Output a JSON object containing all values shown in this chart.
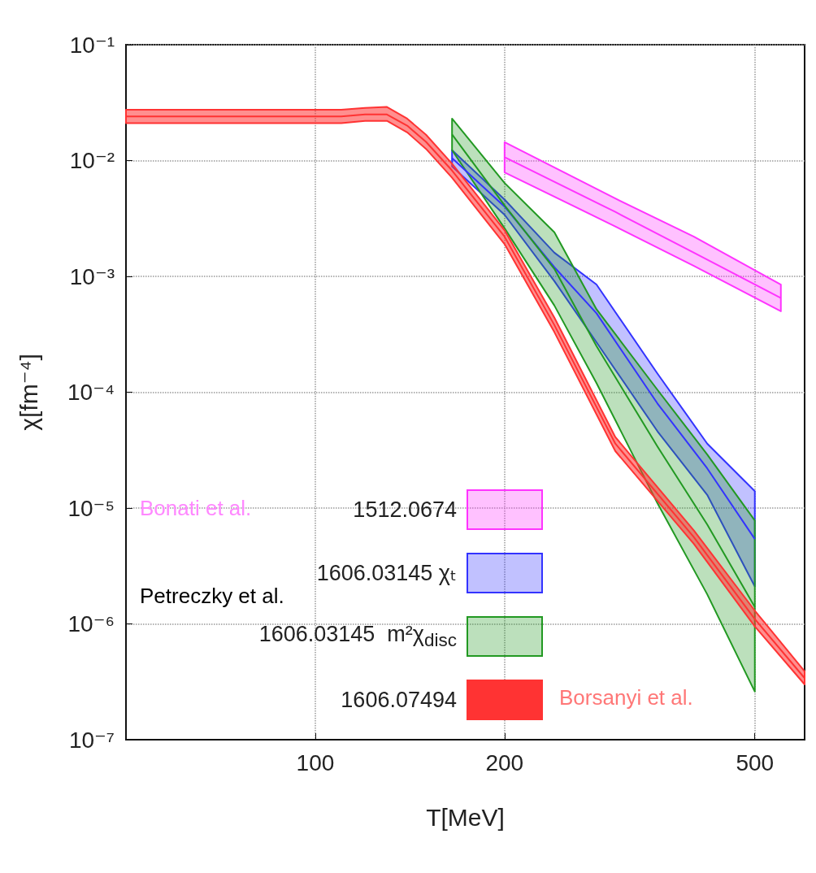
{
  "chart_data": {
    "type": "line",
    "xlabel": "T[MeV]",
    "ylabel": "χ[fm⁻⁴]",
    "log": "xy",
    "xlim": [
      50,
      600
    ],
    "xticks": [
      100,
      200,
      500
    ],
    "ylim": [
      1e-07,
      0.1
    ],
    "yticks": [
      {
        "value": 1e-07,
        "label": "10⁻⁷"
      },
      {
        "value": 1e-06,
        "label": "10⁻⁶"
      },
      {
        "value": 1e-05,
        "label": "10⁻⁵"
      },
      {
        "value": 0.0001,
        "label": "10⁻⁴"
      },
      {
        "value": 0.001,
        "label": "10⁻³"
      },
      {
        "value": 0.01,
        "label": "10⁻²"
      },
      {
        "value": 0.1,
        "label": "10⁻¹"
      }
    ],
    "grid": true,
    "legend": "bottom left",
    "annotations": [
      "Bonati et al.",
      "Petreczky et al.",
      "Borsanyi et al."
    ],
    "series": [
      {
        "name": "1512.0674",
        "color": "#ff33ff",
        "x": [
          200,
          300,
          400,
          550
        ],
        "values": [
          0.0107,
          0.0036,
          0.0016,
          0.00065
        ],
        "lower": [
          0.0079,
          0.0027,
          0.00123,
          0.0005
        ],
        "upper": [
          0.0144,
          0.0047,
          0.0022,
          0.00085
        ]
      },
      {
        "name": "1606.03145 χₜ",
        "color": "#3333ff",
        "x": [
          165,
          200,
          240,
          280,
          350,
          420,
          500
        ],
        "values": [
          0.0105,
          0.004,
          0.0012,
          0.00048,
          8e-05,
          2.2e-05,
          5.4e-06
        ],
        "lower": [
          0.0089,
          0.0034,
          0.00091,
          0.00027,
          4.6e-05,
          1.3e-05,
          2.1e-06
        ],
        "upper": [
          0.0123,
          0.0046,
          0.0016,
          0.00085,
          0.000145,
          3.6e-05,
          1.4e-05
        ]
      },
      {
        "name": "1606.03145  m²χ$_{disc}$",
        "color": "#229922",
        "x": [
          165,
          200,
          240,
          280,
          350,
          420,
          500
        ],
        "values": [
          0.0168,
          0.0041,
          0.00116,
          0.00025,
          3.4e-05,
          7.2e-06,
          1.4e-06
        ],
        "lower": [
          0.0123,
          0.0026,
          0.00056,
          0.00012,
          1.1e-05,
          1.8e-06,
          2.6e-07
        ],
        "upper": [
          0.023,
          0.0064,
          0.0024,
          0.00052,
          0.000105,
          2.9e-05,
          7.8e-06
        ]
      },
      {
        "name": "1606.07494",
        "color": "#ff3333",
        "x": [
          50,
          80,
          110,
          120,
          130,
          140,
          150,
          165,
          200,
          240,
          300,
          400,
          500,
          600
        ],
        "values": [
          0.024,
          0.024,
          0.024,
          0.025,
          0.025,
          0.02,
          0.0145,
          0.0082,
          0.0022,
          0.00038,
          3.6e-05,
          5.6e-06,
          1.1e-06,
          3.4e-07
        ],
        "lower": [
          0.021,
          0.021,
          0.021,
          0.022,
          0.022,
          0.0175,
          0.0126,
          0.0071,
          0.0019,
          0.00033,
          3.1e-05,
          4.9e-06,
          9.5e-07,
          3e-07
        ],
        "upper": [
          0.0275,
          0.0275,
          0.0275,
          0.0285,
          0.029,
          0.023,
          0.0167,
          0.0094,
          0.0025,
          0.00044,
          4.1e-05,
          6.4e-06,
          1.3e-06,
          3.9e-07
        ]
      }
    ]
  }
}
